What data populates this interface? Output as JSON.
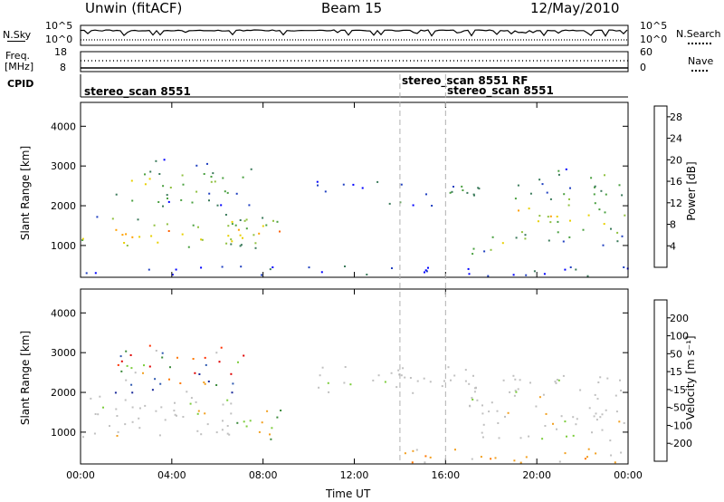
{
  "header": {
    "station": "Unwin (fitACF)",
    "beam": "Beam 15",
    "date": "12/May/2010"
  },
  "nsky_panel": {
    "left_label": "N.Sky",
    "left_ticks": [
      "10^5",
      "10^0"
    ],
    "right_label": "N.Search",
    "right_ticks": [
      "10^5",
      "10^0"
    ]
  },
  "freq_panel": {
    "left_label_1": "Freq.",
    "left_label_2": "[MHz]",
    "left_ticks": [
      "18",
      "8"
    ],
    "right_label": "Nave",
    "right_ticks": [
      "60",
      "0"
    ]
  },
  "cpid": {
    "label": "CPID",
    "entries": [
      "stereo_scan 8551",
      "stereo_scan 8551 RF",
      "stereo_scan 8551"
    ],
    "entry_times_hr": [
      0.0,
      14.0,
      16.0
    ]
  },
  "chart_data": [
    {
      "type": "heatmap",
      "title": "",
      "xlabel": "Time UT",
      "ylabel": "Slant Range [km]",
      "xlim_hr": [
        0,
        24
      ],
      "ylim": [
        200,
        4600
      ],
      "xticks": [
        "00:00",
        "04:00",
        "08:00",
        "12:00",
        "16:00",
        "20:00",
        "00:00"
      ],
      "yticks": [
        1000,
        2000,
        3000,
        4000
      ],
      "colorbar": {
        "label": "Power [dB]",
        "ticks": [
          4,
          8,
          12,
          16,
          20,
          24,
          28
        ],
        "range": [
          0,
          30
        ],
        "colors": [
          "#0000ff",
          "#2040c0",
          "#3a7a5a",
          "#4aa040",
          "#90c040",
          "#e8d000",
          "#ffa000",
          "#ff6000",
          "#ff0000"
        ]
      },
      "regions": [
        {
          "t0": 0.0,
          "t1": 8.0,
          "r0": 900,
          "r1": 1800,
          "level": 0.7
        },
        {
          "t0": 1.5,
          "t1": 7.5,
          "r0": 2000,
          "r1": 3200,
          "level": 0.45
        },
        {
          "t0": 6.5,
          "t1": 8.8,
          "r0": 900,
          "r1": 1800,
          "level": 0.7
        },
        {
          "t0": 10.0,
          "t1": 13.0,
          "r0": 2300,
          "r1": 2700,
          "level": 0.2
        },
        {
          "t0": 13.5,
          "t1": 17.5,
          "r0": 2000,
          "r1": 2700,
          "level": 0.3
        },
        {
          "t0": 17.0,
          "t1": 19.5,
          "r0": 800,
          "r1": 1300,
          "level": 0.6
        },
        {
          "t0": 19.0,
          "t1": 24.0,
          "r0": 1000,
          "r1": 2600,
          "level": 0.6
        },
        {
          "t0": 20.0,
          "t1": 23.0,
          "r0": 2500,
          "r1": 3000,
          "level": 0.45
        },
        {
          "t0": 0.0,
          "t1": 24.0,
          "r0": 250,
          "r1": 500,
          "level": 0.15
        }
      ]
    },
    {
      "type": "heatmap",
      "title": "",
      "xlabel": "Time UT",
      "ylabel": "Slant Range [km]",
      "xlim_hr": [
        0,
        24
      ],
      "ylim": [
        200,
        4600
      ],
      "xticks": [
        "00:00",
        "04:00",
        "08:00",
        "12:00",
        "16:00",
        "20:00",
        "00:00"
      ],
      "yticks": [
        1000,
        2000,
        3000,
        4000
      ],
      "colorbar": {
        "label": "Velocity [m s⁻¹]",
        "ticks": [
          200,
          100,
          50,
          15,
          -15,
          -50,
          -100,
          -200
        ],
        "colors": [
          "#1a2a9a",
          "#2d58b0",
          "#3b8a3b",
          "#7ccd3c",
          "#c0c0c0",
          "#f2a020",
          "#ff7800",
          "#ff3000",
          "#e00000"
        ]
      },
      "regions": [
        {
          "t0": 0.0,
          "t1": 7.0,
          "r0": 900,
          "r1": 2000,
          "kind": "ground"
        },
        {
          "t0": 1.5,
          "t1": 7.5,
          "r0": 2000,
          "r1": 3200,
          "kind": "mixed"
        },
        {
          "t0": 6.5,
          "t1": 8.8,
          "r0": 800,
          "r1": 1600,
          "kind": "positive"
        },
        {
          "t0": 10.0,
          "t1": 17.5,
          "r0": 2000,
          "r1": 2700,
          "kind": "ground"
        },
        {
          "t0": 17.0,
          "t1": 24.0,
          "r0": 800,
          "r1": 2500,
          "kind": "ground"
        },
        {
          "t0": 13.0,
          "t1": 24.0,
          "r0": 250,
          "r1": 600,
          "kind": "negative"
        }
      ]
    }
  ],
  "colors": {
    "axis": "#000000",
    "marker_line": "#b0b0b0"
  }
}
